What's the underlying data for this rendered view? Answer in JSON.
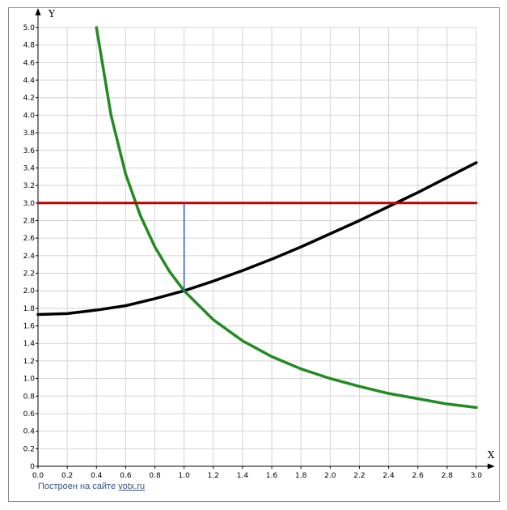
{
  "chart_data": {
    "type": "line",
    "xlabel": "X",
    "ylabel": "Y",
    "xlim": [
      0,
      3
    ],
    "ylim": [
      0,
      5
    ],
    "x_ticks": [
      "0.0",
      "0.2",
      "0.4",
      "0.6",
      "0.8",
      "1.0",
      "1.2",
      "1.4",
      "1.6",
      "1.8",
      "2.0",
      "2.2",
      "2.4",
      "2.6",
      "2.8",
      "3.0"
    ],
    "y_ticks": [
      "0",
      "0.2",
      "0.4",
      "0.6",
      "0.8",
      "1.0",
      "1.2",
      "1.4",
      "1.6",
      "1.8",
      "2.0",
      "2.2",
      "2.4",
      "2.6",
      "2.8",
      "3.0",
      "3.2",
      "3.4",
      "3.6",
      "3.8",
      "4.0",
      "4.2",
      "4.4",
      "4.6",
      "4.8",
      "5.0"
    ],
    "grid": true,
    "series": [
      {
        "color": "#000000",
        "x": [
          0,
          0.2,
          0.4,
          0.6,
          0.8,
          1.0,
          1.2,
          1.4,
          1.6,
          1.8,
          2.0,
          2.2,
          2.4,
          2.6,
          2.8,
          3.0
        ],
        "values": [
          1.73,
          1.74,
          1.78,
          1.83,
          1.91,
          2.0,
          2.11,
          2.23,
          2.36,
          2.5,
          2.65,
          2.8,
          2.96,
          3.12,
          3.29,
          3.46
        ]
      },
      {
        "color": "#228b22",
        "x": [
          0.4,
          0.5,
          0.6,
          0.7,
          0.8,
          0.9,
          1.0,
          1.2,
          1.4,
          1.6,
          1.8,
          2.0,
          2.2,
          2.4,
          2.6,
          2.8,
          3.0
        ],
        "values": [
          5.0,
          4.0,
          3.33,
          2.86,
          2.5,
          2.22,
          2.0,
          1.67,
          1.43,
          1.25,
          1.11,
          1.0,
          0.91,
          0.83,
          0.77,
          0.71,
          0.67
        ]
      },
      {
        "color": "#c00000",
        "x": [
          0,
          3
        ],
        "values": [
          3.0,
          3.0
        ]
      },
      {
        "color": "#3050c8",
        "x": [
          1.0,
          1.0
        ],
        "values": [
          2.0,
          3.0
        ]
      }
    ]
  },
  "footer": {
    "prefix": "Построен на сайте ",
    "link": "yotx.ru"
  }
}
